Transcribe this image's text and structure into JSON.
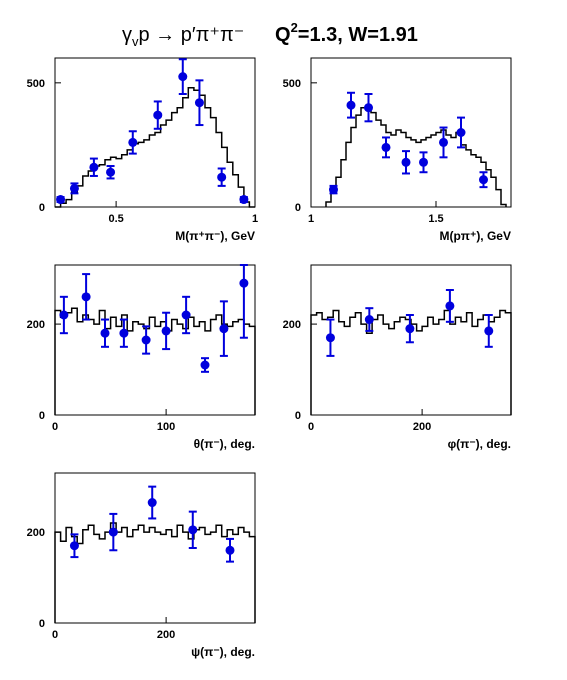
{
  "title": {
    "reaction": "γ",
    "reaction_sub": "v",
    "reaction_rest": "p → p",
    "final_state": "′π⁺π⁻",
    "kinematics_q": "Q",
    "kinematics_q_sup": "2",
    "kinematics_rest": "=1.3, W=1.91"
  },
  "chart_data": [
    {
      "type": "histogram+scatter",
      "xlabel": "M(π⁺π⁻), GeV",
      "xlim": [
        0.28,
        1.0
      ],
      "ylim": [
        0,
        600
      ],
      "xticks": [
        {
          "v": 0.5,
          "label": "0.5"
        },
        {
          "v": 1.0,
          "label": "1"
        }
      ],
      "yticks": [
        {
          "v": 0,
          "label": "0"
        },
        {
          "v": 500,
          "label": "500"
        }
      ],
      "hist_edges": [
        0.28,
        0.3,
        0.32,
        0.34,
        0.36,
        0.38,
        0.4,
        0.42,
        0.44,
        0.46,
        0.48,
        0.5,
        0.52,
        0.54,
        0.56,
        0.58,
        0.6,
        0.62,
        0.64,
        0.66,
        0.68,
        0.7,
        0.72,
        0.74,
        0.76,
        0.78,
        0.8,
        0.82,
        0.84,
        0.86,
        0.88,
        0.9,
        0.92,
        0.94,
        0.96,
        0.98,
        1.0
      ],
      "hist_values": [
        0,
        15,
        30,
        60,
        85,
        125,
        145,
        165,
        170,
        190,
        200,
        195,
        210,
        230,
        255,
        260,
        270,
        290,
        300,
        330,
        350,
        380,
        400,
        440,
        480,
        470,
        450,
        400,
        360,
        300,
        240,
        180,
        130,
        80,
        20,
        0
      ],
      "points": [
        {
          "x": 0.3,
          "y": 30,
          "err": 10
        },
        {
          "x": 0.35,
          "y": 75,
          "err": 20
        },
        {
          "x": 0.42,
          "y": 160,
          "err": 35
        },
        {
          "x": 0.48,
          "y": 140,
          "err": 25
        },
        {
          "x": 0.56,
          "y": 260,
          "err": 45
        },
        {
          "x": 0.65,
          "y": 370,
          "err": 55
        },
        {
          "x": 0.74,
          "y": 525,
          "err": 70
        },
        {
          "x": 0.8,
          "y": 420,
          "err": 90
        },
        {
          "x": 0.88,
          "y": 120,
          "err": 35
        },
        {
          "x": 0.96,
          "y": 30,
          "err": 10
        }
      ]
    },
    {
      "type": "histogram+scatter",
      "xlabel": "M(pπ⁺), GeV",
      "xlim": [
        1.0,
        1.8
      ],
      "ylim": [
        0,
        600
      ],
      "xticks": [
        {
          "v": 1.0,
          "label": "1"
        },
        {
          "v": 1.5,
          "label": "1.5"
        }
      ],
      "yticks": [
        {
          "v": 0,
          "label": "0"
        },
        {
          "v": 500,
          "label": "500"
        }
      ],
      "hist_edges": [
        1.06,
        1.08,
        1.1,
        1.12,
        1.14,
        1.16,
        1.18,
        1.2,
        1.22,
        1.24,
        1.26,
        1.28,
        1.3,
        1.32,
        1.34,
        1.36,
        1.38,
        1.4,
        1.42,
        1.44,
        1.46,
        1.48,
        1.5,
        1.52,
        1.54,
        1.56,
        1.58,
        1.6,
        1.62,
        1.64,
        1.66,
        1.68,
        1.7,
        1.72,
        1.74,
        1.76,
        1.78
      ],
      "hist_values": [
        20,
        60,
        120,
        190,
        260,
        320,
        370,
        400,
        410,
        380,
        350,
        330,
        300,
        290,
        310,
        300,
        280,
        270,
        260,
        270,
        280,
        290,
        300,
        310,
        290,
        280,
        300,
        250,
        230,
        210,
        200,
        180,
        150,
        120,
        70,
        10
      ],
      "points": [
        {
          "x": 1.09,
          "y": 70,
          "err": 15
        },
        {
          "x": 1.16,
          "y": 410,
          "err": 50
        },
        {
          "x": 1.23,
          "y": 400,
          "err": 55
        },
        {
          "x": 1.3,
          "y": 240,
          "err": 40
        },
        {
          "x": 1.38,
          "y": 180,
          "err": 45
        },
        {
          "x": 1.45,
          "y": 180,
          "err": 40
        },
        {
          "x": 1.53,
          "y": 260,
          "err": 60
        },
        {
          "x": 1.6,
          "y": 300,
          "err": 60
        },
        {
          "x": 1.69,
          "y": 110,
          "err": 30
        }
      ]
    },
    {
      "type": "histogram+scatter",
      "xlabel": "θ(π⁻), deg.",
      "xlim": [
        0,
        180
      ],
      "ylim": [
        0,
        330
      ],
      "xticks": [
        {
          "v": 0,
          "label": "0"
        },
        {
          "v": 100,
          "label": "100"
        }
      ],
      "yticks": [
        {
          "v": 0,
          "label": "0"
        },
        {
          "v": 200,
          "label": "200"
        }
      ],
      "hist_edges": [
        0,
        5,
        10,
        15,
        20,
        25,
        30,
        35,
        40,
        45,
        50,
        55,
        60,
        65,
        70,
        75,
        80,
        85,
        90,
        95,
        100,
        105,
        110,
        115,
        120,
        125,
        130,
        135,
        140,
        145,
        150,
        155,
        160,
        165,
        170,
        175,
        180
      ],
      "hist_values": [
        230,
        215,
        225,
        235,
        205,
        220,
        210,
        200,
        230,
        190,
        215,
        195,
        220,
        185,
        205,
        200,
        190,
        215,
        195,
        205,
        185,
        210,
        200,
        190,
        215,
        195,
        205,
        185,
        210,
        220,
        200,
        195,
        205,
        210,
        200,
        195
      ],
      "points": [
        {
          "x": 8,
          "y": 220,
          "err": 40
        },
        {
          "x": 28,
          "y": 260,
          "err": 50
        },
        {
          "x": 45,
          "y": 180,
          "err": 30
        },
        {
          "x": 62,
          "y": 180,
          "err": 30
        },
        {
          "x": 82,
          "y": 165,
          "err": 30
        },
        {
          "x": 100,
          "y": 185,
          "err": 40
        },
        {
          "x": 118,
          "y": 220,
          "err": 40
        },
        {
          "x": 135,
          "y": 110,
          "err": 15
        },
        {
          "x": 152,
          "y": 190,
          "err": 60
        },
        {
          "x": 170,
          "y": 290,
          "err": 120
        }
      ]
    },
    {
      "type": "histogram+scatter",
      "xlabel": "φ(π⁻), deg.",
      "xlim": [
        0,
        360
      ],
      "ylim": [
        0,
        330
      ],
      "xticks": [
        {
          "v": 0,
          "label": "0"
        },
        {
          "v": 200,
          "label": "200"
        }
      ],
      "yticks": [
        {
          "v": 0,
          "label": "0"
        },
        {
          "v": 200,
          "label": "200"
        }
      ],
      "hist_edges": [
        0,
        10,
        20,
        30,
        40,
        50,
        60,
        70,
        80,
        90,
        100,
        110,
        120,
        130,
        140,
        150,
        160,
        170,
        180,
        190,
        200,
        210,
        220,
        230,
        240,
        250,
        260,
        270,
        280,
        290,
        300,
        310,
        320,
        330,
        340,
        350,
        360
      ],
      "hist_values": [
        220,
        225,
        210,
        215,
        230,
        205,
        195,
        215,
        225,
        200,
        180,
        210,
        220,
        200,
        190,
        205,
        215,
        210,
        200,
        185,
        195,
        215,
        200,
        210,
        230,
        200,
        215,
        205,
        225,
        195,
        210,
        220,
        205,
        215,
        230,
        225
      ],
      "points": [
        {
          "x": 35,
          "y": 170,
          "err": 40
        },
        {
          "x": 105,
          "y": 210,
          "err": 25
        },
        {
          "x": 178,
          "y": 190,
          "err": 30
        },
        {
          "x": 250,
          "y": 240,
          "err": 35
        },
        {
          "x": 320,
          "y": 185,
          "err": 35
        }
      ]
    },
    {
      "type": "histogram+scatter",
      "xlabel": "ψ(π⁻), deg.",
      "xlim": [
        0,
        360
      ],
      "ylim": [
        0,
        330
      ],
      "xticks": [
        {
          "v": 0,
          "label": "0"
        },
        {
          "v": 200,
          "label": "200"
        }
      ],
      "yticks": [
        {
          "v": 0,
          "label": "0"
        },
        {
          "v": 200,
          "label": "200"
        }
      ],
      "hist_edges": [
        0,
        10,
        20,
        30,
        40,
        50,
        60,
        70,
        80,
        90,
        100,
        110,
        120,
        130,
        140,
        150,
        160,
        170,
        180,
        190,
        200,
        210,
        220,
        230,
        240,
        250,
        260,
        270,
        280,
        290,
        300,
        310,
        320,
        330,
        340,
        350,
        360
      ],
      "hist_values": [
        200,
        180,
        210,
        190,
        175,
        205,
        215,
        195,
        185,
        200,
        220,
        200,
        210,
        190,
        205,
        215,
        200,
        210,
        200,
        195,
        205,
        190,
        215,
        200,
        185,
        205,
        210,
        195,
        200,
        215,
        190,
        205,
        195,
        210,
        200,
        190
      ],
      "points": [
        {
          "x": 35,
          "y": 170,
          "err": 25
        },
        {
          "x": 105,
          "y": 200,
          "err": 40
        },
        {
          "x": 175,
          "y": 265,
          "err": 35
        },
        {
          "x": 248,
          "y": 205,
          "err": 40
        },
        {
          "x": 315,
          "y": 160,
          "err": 25
        }
      ]
    }
  ],
  "colors": {
    "hist": "#000000",
    "points": "#0000dd",
    "axis": "#000000"
  }
}
